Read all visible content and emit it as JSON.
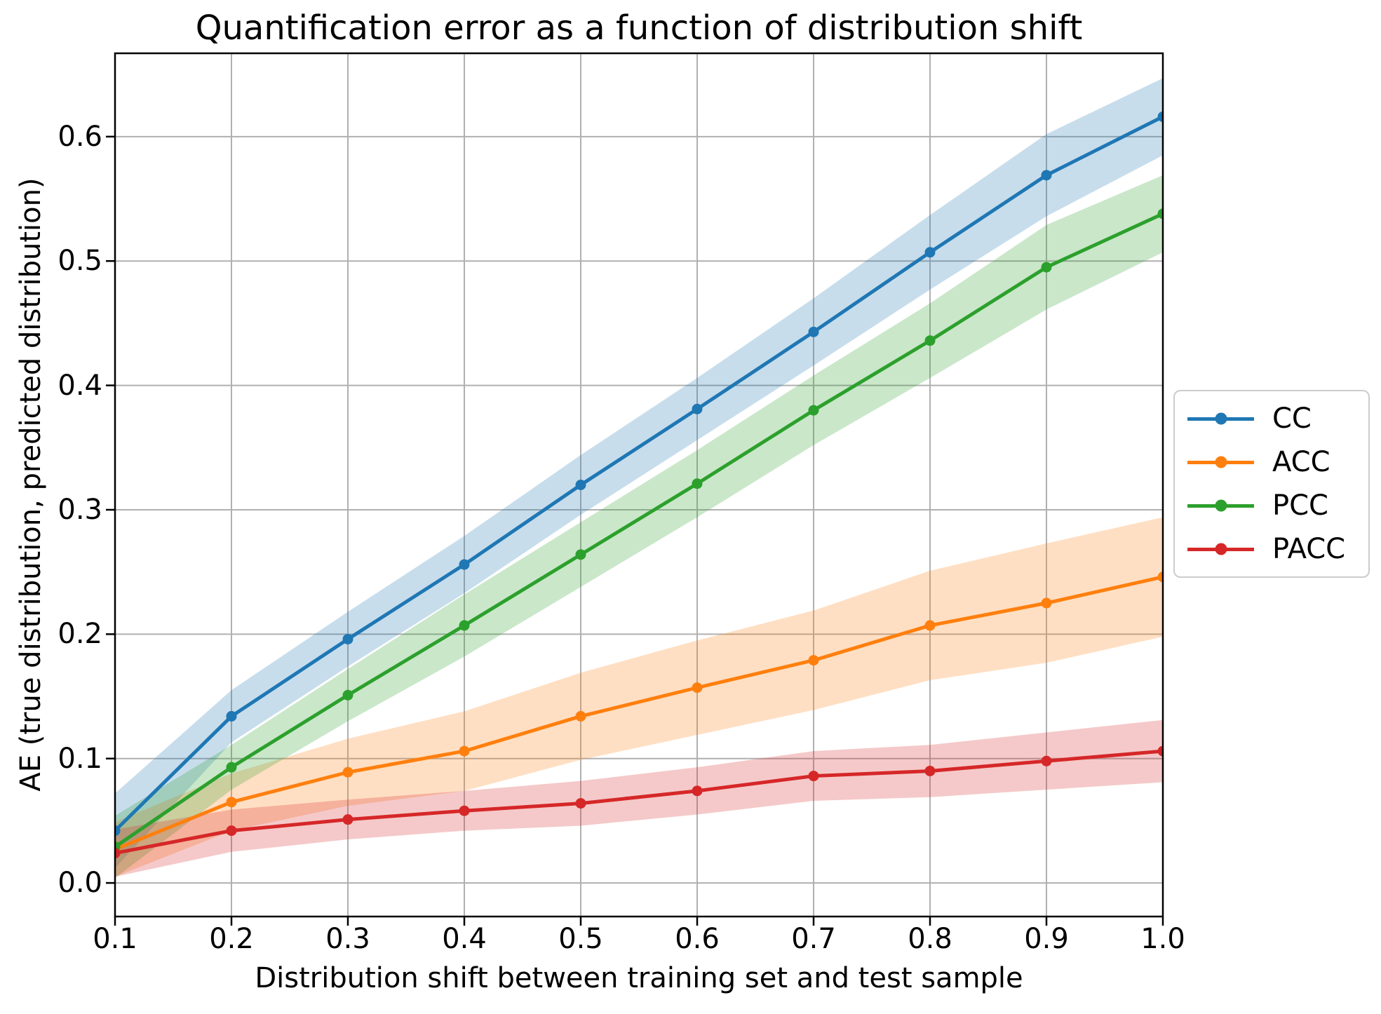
{
  "figure": {
    "title": "Quantification error as a function of distribution shift",
    "background": "#ffffff",
    "grid_color": "#b0b0b0",
    "axis_color": "#000000",
    "legend_border_color": "#cccccc"
  },
  "chart_data": {
    "type": "line",
    "title": "Quantification error as a function of distribution shift",
    "xlabel": "Distribution shift between training set and test sample",
    "ylabel": "AE (true distribution, predicted distribution)",
    "x": [
      0.1,
      0.2,
      0.3,
      0.4,
      0.5,
      0.6,
      0.7,
      0.8,
      0.9,
      1.0
    ],
    "xticks": [
      "0.1",
      "0.2",
      "0.3",
      "0.4",
      "0.5",
      "0.6",
      "0.7",
      "0.8",
      "0.9",
      "1.0"
    ],
    "yticks": [
      "0.0",
      "0.1",
      "0.2",
      "0.3",
      "0.4",
      "0.5",
      "0.6"
    ],
    "xlim": [
      0.1,
      1.0
    ],
    "ylim": [
      -0.027,
      0.667
    ],
    "grid": true,
    "legend_position": "outside-right",
    "band_alpha": 0.25,
    "marker": "circle",
    "series": [
      {
        "name": "CC",
        "color": "#1f77b4",
        "values": [
          0.042,
          0.134,
          0.196,
          0.256,
          0.32,
          0.381,
          0.443,
          0.507,
          0.569,
          0.616
        ],
        "band_halfwidth": [
          0.03,
          0.021,
          0.022,
          0.023,
          0.024,
          0.025,
          0.027,
          0.03,
          0.033,
          0.031
        ]
      },
      {
        "name": "ACC",
        "color": "#ff7f0e",
        "values": [
          0.027,
          0.065,
          0.089,
          0.106,
          0.134,
          0.157,
          0.179,
          0.207,
          0.225,
          0.246
        ],
        "band_halfwidth": [
          0.022,
          0.023,
          0.027,
          0.032,
          0.035,
          0.038,
          0.04,
          0.044,
          0.048,
          0.048
        ]
      },
      {
        "name": "PCC",
        "color": "#2ca02c",
        "values": [
          0.029,
          0.093,
          0.151,
          0.207,
          0.264,
          0.321,
          0.38,
          0.436,
          0.495,
          0.538
        ],
        "band_halfwidth": [
          0.025,
          0.018,
          0.021,
          0.025,
          0.026,
          0.027,
          0.028,
          0.03,
          0.034,
          0.031
        ]
      },
      {
        "name": "PACC",
        "color": "#d62728",
        "values": [
          0.024,
          0.042,
          0.051,
          0.058,
          0.064,
          0.074,
          0.086,
          0.09,
          0.098,
          0.106
        ],
        "band_halfwidth": [
          0.019,
          0.017,
          0.016,
          0.016,
          0.018,
          0.019,
          0.02,
          0.021,
          0.023,
          0.025
        ]
      }
    ],
    "legend_order": [
      "CC",
      "ACC",
      "PCC",
      "PACC"
    ]
  }
}
